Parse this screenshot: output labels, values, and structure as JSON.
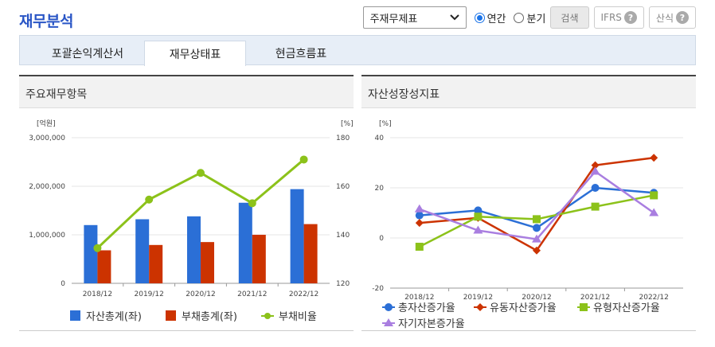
{
  "header": {
    "title": "재무분석"
  },
  "controls": {
    "select_value": "주재무제표",
    "radio_annual": "연간",
    "radio_quarter": "분기",
    "search_button": "검색",
    "ifrs_label": "IFRS",
    "formula_label": "산식",
    "help_glyph": "?"
  },
  "tabs": [
    {
      "label": "포괄손익계산서",
      "active": false
    },
    {
      "label": "재무상태표",
      "active": true
    },
    {
      "label": "현금흐름표",
      "active": false
    }
  ],
  "left_panel": {
    "title": "주요재무항목"
  },
  "right_panel": {
    "title": "자산성장성지표"
  },
  "chart_data": [
    {
      "type": "bar",
      "title": "주요재무항목",
      "categories": [
        "2018/12",
        "2019/12",
        "2020/12",
        "2021/12",
        "2022/12"
      ],
      "y_left_unit": "[억원]",
      "y_right_unit": "[%]",
      "y_left_ticks": [
        "3,000,000",
        "2,000,000",
        "1,000,000",
        "0"
      ],
      "y_right_ticks": [
        "180",
        "160",
        "140",
        "120"
      ],
      "ylim_left": [
        0,
        3000000
      ],
      "ylim_right": [
        120,
        180
      ],
      "series": [
        {
          "name": "자산총계(좌)",
          "kind": "bar",
          "axis": "left",
          "color": "#2b6fd6",
          "values": [
            1200000,
            1320000,
            1380000,
            1660000,
            1940000
          ]
        },
        {
          "name": "부채총계(좌)",
          "kind": "bar",
          "axis": "left",
          "color": "#cc3300",
          "values": [
            680000,
            790000,
            850000,
            1000000,
            1220000
          ]
        },
        {
          "name": "부채비율",
          "kind": "line",
          "axis": "right",
          "color": "#8cc21a",
          "values": [
            134.5,
            154.5,
            165.5,
            153,
            171
          ]
        }
      ],
      "legend_position": "bottom"
    },
    {
      "type": "line",
      "title": "자산성장성지표",
      "categories": [
        "2018/12",
        "2019/12",
        "2020/12",
        "2021/12",
        "2022/12"
      ],
      "y_unit": "[%]",
      "y_ticks": [
        "40",
        "20",
        "0",
        "-20"
      ],
      "ylim": [
        -20,
        40
      ],
      "series": [
        {
          "name": "총자산증가율",
          "marker": "circle",
          "color": "#2b6fd6",
          "values": [
            9,
            11,
            4,
            20,
            18
          ]
        },
        {
          "name": "유동자산증가율",
          "marker": "diamond",
          "color": "#cc3300",
          "values": [
            6,
            8,
            -5,
            29,
            32
          ]
        },
        {
          "name": "유형자산증가율",
          "marker": "square",
          "color": "#8cc21a",
          "values": [
            -3.5,
            8.5,
            7.5,
            12.5,
            17
          ]
        },
        {
          "name": "자기자본증가율",
          "marker": "triangle",
          "color": "#a97ee0",
          "values": [
            11.5,
            3,
            -0.5,
            26.5,
            10
          ]
        }
      ],
      "legend_position": "bottom"
    }
  ]
}
